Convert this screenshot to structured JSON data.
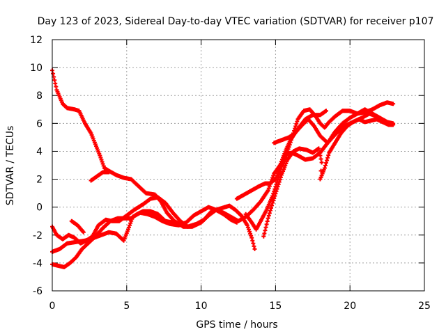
{
  "chart_data": {
    "type": "scatter",
    "title": "Day 123 of 2023, Sidereal Day-to-day VTEC variation (SDTVAR) for receiver p107",
    "xlabel": "GPS time / hours",
    "ylabel": "SDTVAR / TECUs",
    "xlim": [
      0,
      25
    ],
    "ylim": [
      -6,
      12
    ],
    "xticks": [
      "0",
      "5",
      "10",
      "15",
      "20",
      "25"
    ],
    "yticks": [
      "-6",
      "-4",
      "-2",
      "0",
      "2",
      "4",
      "6",
      "8",
      "10",
      "12"
    ],
    "grid": true,
    "marker": "+",
    "color": "#ff0000",
    "series": [
      {
        "values": [
          [
            0.0,
            9.8
          ],
          [
            0.3,
            8.4
          ],
          [
            0.7,
            7.4
          ],
          [
            1.0,
            7.1
          ],
          [
            1.5,
            7.0
          ],
          [
            1.8,
            6.9
          ],
          [
            2.2,
            6.0
          ],
          [
            2.6,
            5.3
          ],
          [
            2.9,
            4.5
          ],
          [
            3.2,
            3.7
          ],
          [
            3.5,
            2.8
          ],
          [
            3.8,
            2.6
          ],
          [
            4.3,
            2.3
          ],
          [
            4.8,
            2.1
          ],
          [
            5.3,
            2.0
          ],
          [
            5.8,
            1.5
          ],
          [
            6.3,
            1.0
          ],
          [
            6.9,
            0.9
          ],
          [
            7.3,
            0.4
          ],
          [
            7.7,
            -0.4
          ],
          [
            8.2,
            -1.0
          ],
          [
            8.8,
            -1.4
          ],
          [
            9.4,
            -1.4
          ],
          [
            10.0,
            -1.1
          ],
          [
            10.5,
            -0.6
          ],
          [
            11.0,
            -0.2
          ],
          [
            11.5,
            -0.5
          ],
          [
            12.0,
            -0.9
          ],
          [
            12.4,
            -1.1
          ]
        ]
      },
      {
        "values": [
          [
            2.6,
            1.9
          ],
          [
            3.0,
            2.2
          ],
          [
            3.4,
            2.5
          ],
          [
            3.8,
            2.5
          ]
        ]
      },
      {
        "values": [
          [
            0.0,
            -1.4
          ],
          [
            0.3,
            -2.0
          ],
          [
            0.7,
            -2.3
          ],
          [
            1.1,
            -2.0
          ],
          [
            1.5,
            -2.2
          ],
          [
            1.9,
            -2.6
          ],
          [
            2.3,
            -2.4
          ],
          [
            2.7,
            -2.1
          ],
          [
            3.1,
            -1.3
          ],
          [
            3.6,
            -0.9
          ],
          [
            4.0,
            -1.0
          ],
          [
            4.5,
            -1.0
          ],
          [
            5.0,
            -0.6
          ],
          [
            5.5,
            -0.2
          ],
          [
            6.1,
            0.2
          ],
          [
            6.6,
            0.6
          ],
          [
            7.1,
            0.7
          ],
          [
            7.6,
            0.3
          ],
          [
            8.1,
            -0.4
          ],
          [
            8.6,
            -1.0
          ],
          [
            9.1,
            -1.4
          ],
          [
            9.7,
            -1.2
          ],
          [
            10.2,
            -0.9
          ],
          [
            10.7,
            -0.3
          ],
          [
            11.3,
            -0.1
          ],
          [
            11.9,
            0.1
          ],
          [
            12.3,
            -0.2
          ],
          [
            12.7,
            -0.6
          ],
          [
            13.1,
            -1.3
          ],
          [
            13.4,
            -2.2
          ],
          [
            13.6,
            -3.0
          ]
        ]
      },
      {
        "values": [
          [
            0.0,
            -3.2
          ],
          [
            0.5,
            -3.0
          ],
          [
            1.0,
            -2.6
          ],
          [
            1.6,
            -2.5
          ],
          [
            2.2,
            -2.4
          ],
          [
            2.8,
            -2.2
          ],
          [
            3.3,
            -2.0
          ],
          [
            3.8,
            -1.8
          ],
          [
            4.3,
            -1.9
          ],
          [
            4.8,
            -2.4
          ],
          [
            5.1,
            -1.6
          ],
          [
            5.4,
            -0.7
          ],
          [
            5.9,
            -0.4
          ],
          [
            6.4,
            -0.5
          ],
          [
            6.9,
            -0.7
          ],
          [
            7.4,
            -1.0
          ],
          [
            7.9,
            -1.2
          ],
          [
            8.5,
            -1.3
          ],
          [
            9.0,
            -1.1
          ],
          [
            9.5,
            -0.6
          ],
          [
            10.0,
            -0.3
          ],
          [
            10.5,
            0.0
          ],
          [
            11.0,
            -0.2
          ],
          [
            11.5,
            -0.4
          ],
          [
            12.0,
            -0.7
          ],
          [
            12.5,
            -1.0
          ],
          [
            13.0,
            -0.7
          ],
          [
            13.5,
            -0.2
          ],
          [
            14.0,
            0.4
          ],
          [
            14.5,
            1.2
          ],
          [
            14.9,
            2.4
          ],
          [
            15.3,
            3.0
          ],
          [
            15.7,
            4.1
          ],
          [
            16.0,
            4.8
          ],
          [
            16.5,
            5.6
          ],
          [
            17.0,
            6.3
          ],
          [
            17.5,
            6.6
          ],
          [
            18.0,
            6.6
          ],
          [
            18.4,
            6.9
          ]
        ]
      },
      {
        "values": [
          [
            0.0,
            -4.1
          ],
          [
            0.4,
            -4.2
          ],
          [
            0.8,
            -4.3
          ],
          [
            1.2,
            -4.0
          ],
          [
            1.6,
            -3.6
          ],
          [
            2.0,
            -3.0
          ],
          [
            2.4,
            -2.6
          ],
          [
            2.9,
            -2.1
          ],
          [
            3.4,
            -1.5
          ],
          [
            3.9,
            -1.0
          ],
          [
            4.4,
            -0.8
          ],
          [
            4.9,
            -0.8
          ],
          [
            5.3,
            -0.8
          ],
          [
            5.7,
            -0.5
          ],
          [
            6.1,
            -0.3
          ],
          [
            6.6,
            -0.3
          ],
          [
            7.1,
            -0.5
          ],
          [
            7.6,
            -1.0
          ],
          [
            8.1,
            -1.1
          ]
        ]
      },
      {
        "values": [
          [
            1.3,
            -1.0
          ],
          [
            1.7,
            -1.3
          ],
          [
            2.1,
            -1.8
          ]
        ]
      },
      {
        "values": [
          [
            12.4,
            0.6
          ],
          [
            12.9,
            0.9
          ],
          [
            13.4,
            1.2
          ],
          [
            13.9,
            1.5
          ],
          [
            14.3,
            1.7
          ],
          [
            14.6,
            1.7
          ],
          [
            15.0,
            2.0
          ],
          [
            15.3,
            2.8
          ],
          [
            15.6,
            3.4
          ],
          [
            15.9,
            4.3
          ],
          [
            16.2,
            5.3
          ],
          [
            16.5,
            6.3
          ],
          [
            16.9,
            6.9
          ],
          [
            17.3,
            7.0
          ],
          [
            17.7,
            6.5
          ],
          [
            18.0,
            6.0
          ],
          [
            18.3,
            5.7
          ],
          [
            18.6,
            6.1
          ],
          [
            19.0,
            6.5
          ],
          [
            19.5,
            6.9
          ],
          [
            20.0,
            6.9
          ],
          [
            20.5,
            6.7
          ],
          [
            21.0,
            6.8
          ],
          [
            21.5,
            7.0
          ],
          [
            22.0,
            7.3
          ],
          [
            22.5,
            7.5
          ],
          [
            22.9,
            7.4
          ]
        ]
      },
      {
        "values": [
          [
            14.2,
            -2.1
          ],
          [
            14.5,
            -0.8
          ],
          [
            14.8,
            0.3
          ],
          [
            15.1,
            1.3
          ],
          [
            15.4,
            2.3
          ],
          [
            15.8,
            3.4
          ],
          [
            16.2,
            4.0
          ],
          [
            16.6,
            4.2
          ],
          [
            17.1,
            4.1
          ],
          [
            17.5,
            3.9
          ],
          [
            17.9,
            4.2
          ],
          [
            18.1,
            3.2
          ],
          [
            18.0,
            2.0
          ],
          [
            18.3,
            2.8
          ],
          [
            18.6,
            3.9
          ],
          [
            19.0,
            4.6
          ],
          [
            19.4,
            5.3
          ],
          [
            19.8,
            5.8
          ],
          [
            20.2,
            6.1
          ],
          [
            20.6,
            6.3
          ],
          [
            21.0,
            6.1
          ],
          [
            21.4,
            6.2
          ],
          [
            21.8,
            6.3
          ],
          [
            22.2,
            6.1
          ],
          [
            22.6,
            5.9
          ],
          [
            22.9,
            5.9
          ]
        ]
      },
      {
        "values": [
          [
            13.0,
            -0.5
          ],
          [
            13.4,
            -1.1
          ],
          [
            13.7,
            -1.6
          ],
          [
            14.0,
            -1.0
          ],
          [
            14.4,
            -0.2
          ],
          [
            14.8,
            0.8
          ],
          [
            15.1,
            1.8
          ],
          [
            15.4,
            2.9
          ],
          [
            15.7,
            3.8
          ],
          [
            16.1,
            3.9
          ],
          [
            16.5,
            3.7
          ],
          [
            17.0,
            3.4
          ],
          [
            17.5,
            3.5
          ],
          [
            18.0,
            3.9
          ],
          [
            18.5,
            4.6
          ],
          [
            19.0,
            5.2
          ],
          [
            19.6,
            5.8
          ],
          [
            20.2,
            6.1
          ],
          [
            20.8,
            6.4
          ],
          [
            21.3,
            6.7
          ],
          [
            21.8,
            6.5
          ],
          [
            22.3,
            6.2
          ],
          [
            22.8,
            5.9
          ]
        ]
      },
      {
        "values": [
          [
            14.9,
            4.6
          ],
          [
            15.4,
            4.8
          ],
          [
            15.9,
            5.0
          ],
          [
            16.3,
            5.3
          ],
          [
            16.8,
            5.9
          ],
          [
            17.2,
            6.3
          ],
          [
            17.6,
            5.8
          ],
          [
            18.0,
            5.1
          ],
          [
            18.5,
            4.6
          ],
          [
            19.0,
            5.4
          ],
          [
            19.5,
            6.0
          ],
          [
            20.0,
            6.4
          ],
          [
            20.5,
            6.7
          ],
          [
            21.0,
            7.0
          ],
          [
            21.5,
            6.7
          ],
          [
            22.0,
            6.4
          ],
          [
            22.5,
            6.1
          ],
          [
            22.9,
            6.0
          ]
        ]
      }
    ]
  }
}
